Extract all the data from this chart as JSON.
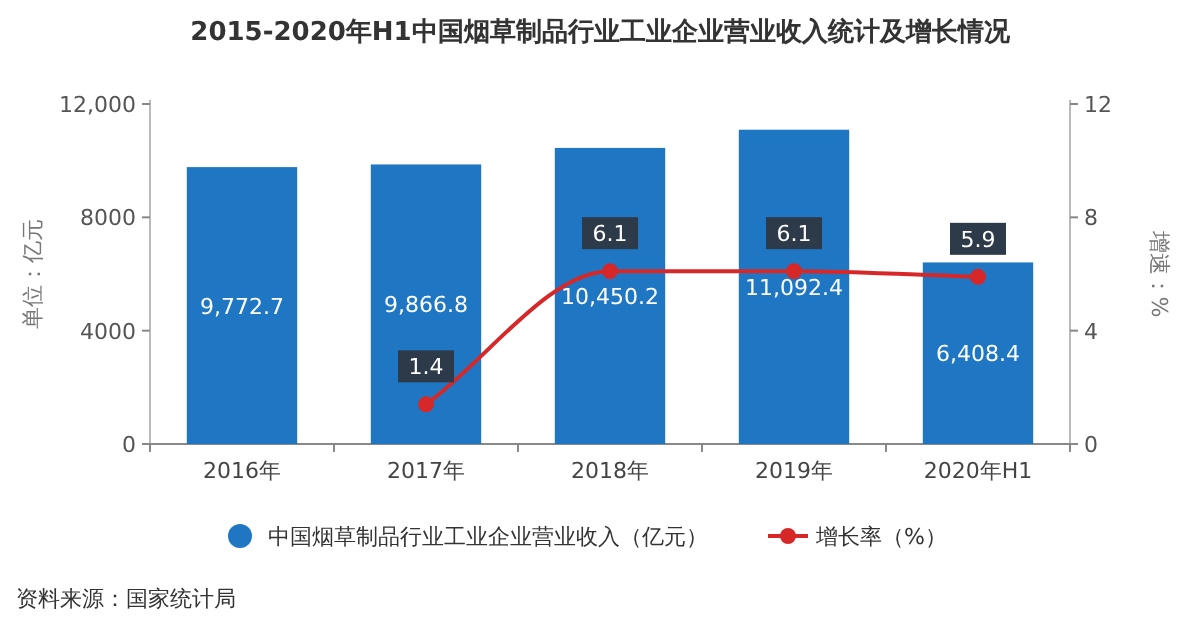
{
  "chart_data": {
    "type": "bar",
    "title": "2015-2020年H1中国烟草制品行业工业企业营业收入统计及增长情况",
    "categories": [
      "2016年",
      "2017年",
      "2018年",
      "2019年",
      "2020年H1"
    ],
    "series": [
      {
        "name": "中国烟草制品行业工业企业营业收入（亿元）",
        "color": "#1f77c4",
        "values": [
          9772.7,
          9866.8,
          10450.2,
          11092.4,
          6408.4
        ],
        "value_labels": [
          "9,772.7",
          "9,866.8",
          "10,450.2",
          "11,092.4",
          "6,408.4"
        ]
      },
      {
        "name": "增长率（%）",
        "type": "line",
        "axis": "y2",
        "color": "#d62828",
        "values": [
          null,
          1.4,
          6.1,
          6.1,
          5.9
        ],
        "value_labels": [
          null,
          "1.4",
          "6.1",
          "6.1",
          "5.9"
        ]
      }
    ],
    "ylim": [
      0,
      12000
    ],
    "yticks": [
      0,
      4000,
      8000,
      {
        "value": 12000,
        "label": "12,000"
      }
    ],
    "y2lim": [
      0,
      12
    ],
    "y2ticks": [
      0,
      4,
      8,
      12
    ],
    "ylabel": "单位：亿元",
    "y2label": "增速：%",
    "marker": "circle",
    "legend": "bottom",
    "grid": false,
    "annotations": [
      "资料来源：国家统计局"
    ]
  }
}
